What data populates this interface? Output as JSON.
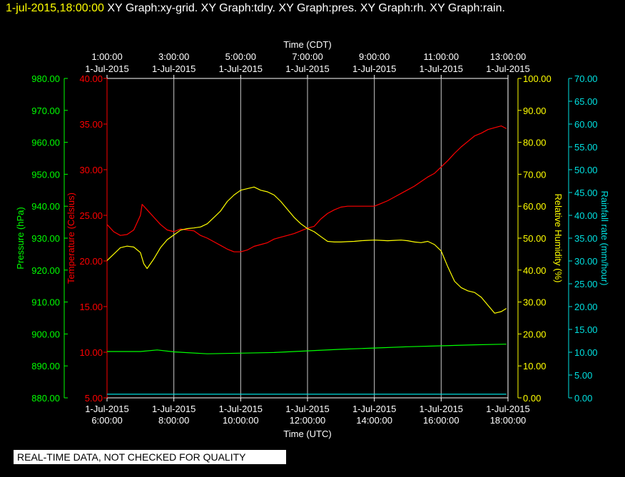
{
  "header": {
    "timestamp": "1-jul-2015,18:00:00",
    "graphs": "XY Graph:xy-grid.  XY Graph:tdry.  XY Graph:pres.  XY Graph:rh.  XY Graph:rain."
  },
  "disclaimer": "REAL-TIME DATA, NOT CHECKED FOR QUALITY",
  "colors": {
    "pressure": "#00ff00",
    "temperature": "#ff0000",
    "humidity": "#ffff00",
    "rain": "#00e0e0",
    "grid": "#ffffff",
    "background": "#000000"
  },
  "chart_data": {
    "type": "line",
    "x_top": {
      "label": "Time (CDT)",
      "ticks": [
        {
          "time": "1:00:00",
          "date": "1-Jul-2015"
        },
        {
          "time": "3:00:00",
          "date": "1-Jul-2015"
        },
        {
          "time": "5:00:00",
          "date": "1-Jul-2015"
        },
        {
          "time": "7:00:00",
          "date": "1-Jul-2015"
        },
        {
          "time": "9:00:00",
          "date": "1-Jul-2015"
        },
        {
          "time": "11:00:00",
          "date": "1-Jul-2015"
        },
        {
          "time": "13:00:00",
          "date": "1-Jul-2015"
        }
      ]
    },
    "x_bottom": {
      "label": "Time (UTC)",
      "ticks": [
        {
          "date": "1-Jul-2015",
          "time": "6:00:00"
        },
        {
          "date": "1-Jul-2015",
          "time": "8:00:00"
        },
        {
          "date": "1-Jul-2015",
          "time": "10:00:00"
        },
        {
          "date": "1-Jul-2015",
          "time": "12:00:00"
        },
        {
          "date": "1-Jul-2015",
          "time": "14:00:00"
        },
        {
          "date": "1-Jul-2015",
          "time": "16:00:00"
        },
        {
          "date": "1-Jul-2015",
          "time": "18:00:00"
        }
      ]
    },
    "x_range_utc_hours": [
      6,
      18
    ],
    "grid": true,
    "axes": {
      "pressure": {
        "label": "Pressure (hPa)",
        "range": [
          880,
          980
        ],
        "ticks": [
          "880.00",
          "890.00",
          "900.00",
          "910.00",
          "920.00",
          "930.00",
          "940.00",
          "950.00",
          "960.00",
          "970.00",
          "980.00"
        ]
      },
      "temperature": {
        "label": "Temperature (Celsius)",
        "range": [
          5,
          40
        ],
        "ticks": [
          "5.00",
          "10.00",
          "15.00",
          "20.00",
          "25.00",
          "30.00",
          "35.00",
          "40.00"
        ]
      },
      "humidity": {
        "label": "Relative Humidity (%)",
        "range": [
          0,
          100
        ],
        "ticks": [
          "0.00",
          "10.00",
          "20.00",
          "30.00",
          "40.00",
          "50.00",
          "60.00",
          "70.00",
          "80.00",
          "90.00",
          "100.00"
        ]
      },
      "rain": {
        "label": "Rainfall rate (mm/hour)",
        "range": [
          0,
          70
        ],
        "ticks": [
          "0.00",
          "5.00",
          "10.00",
          "15.00",
          "20.00",
          "25.00",
          "30.00",
          "35.00",
          "40.00",
          "45.00",
          "50.00",
          "55.00",
          "60.00",
          "65.00",
          "70.00"
        ]
      }
    },
    "series": [
      {
        "name": "Temperature (Celsius)",
        "axis": "temperature",
        "color": "#ff0000",
        "x": [
          6.0,
          6.2,
          6.4,
          6.6,
          6.8,
          7.0,
          7.05,
          7.2,
          7.4,
          7.6,
          7.8,
          8.0,
          8.2,
          8.4,
          8.6,
          8.8,
          9.0,
          9.2,
          9.4,
          9.6,
          9.8,
          10.0,
          10.2,
          10.4,
          10.6,
          10.8,
          11.0,
          11.2,
          11.4,
          11.6,
          11.8,
          12.0,
          12.2,
          12.4,
          12.6,
          12.8,
          13.0,
          13.2,
          13.4,
          13.6,
          13.8,
          14.0,
          14.2,
          14.4,
          14.6,
          14.8,
          15.0,
          15.2,
          15.4,
          15.6,
          15.8,
          16.0,
          16.2,
          16.4,
          16.6,
          16.8,
          17.0,
          17.2,
          17.4,
          17.6,
          17.8,
          17.95
        ],
        "y": [
          24.0,
          23.2,
          22.8,
          22.9,
          23.4,
          25.0,
          26.2,
          25.6,
          24.8,
          24.0,
          23.4,
          23.2,
          23.5,
          23.4,
          23.3,
          22.8,
          22.5,
          22.1,
          21.7,
          21.3,
          21.0,
          21.0,
          21.2,
          21.6,
          21.8,
          22.0,
          22.4,
          22.6,
          22.8,
          23.0,
          23.3,
          23.6,
          23.8,
          24.6,
          25.2,
          25.6,
          25.9,
          26.0,
          26.0,
          26.0,
          26.0,
          26.0,
          26.3,
          26.6,
          27.0,
          27.4,
          27.8,
          28.2,
          28.7,
          29.2,
          29.6,
          30.3,
          31.0,
          31.8,
          32.5,
          33.1,
          33.7,
          34.0,
          34.4,
          34.6,
          34.8,
          34.5
        ]
      },
      {
        "name": "Relative Humidity (%)",
        "axis": "humidity",
        "color": "#ffff00",
        "x": [
          6.0,
          6.2,
          6.4,
          6.6,
          6.8,
          7.0,
          7.1,
          7.2,
          7.4,
          7.6,
          7.8,
          8.0,
          8.2,
          8.4,
          8.6,
          8.8,
          9.0,
          9.2,
          9.4,
          9.6,
          9.8,
          10.0,
          10.2,
          10.4,
          10.6,
          10.8,
          11.0,
          11.2,
          11.4,
          11.6,
          11.8,
          12.0,
          12.2,
          12.4,
          12.6,
          12.8,
          13.0,
          13.2,
          13.4,
          13.6,
          13.8,
          14.0,
          14.2,
          14.4,
          14.6,
          14.8,
          15.0,
          15.2,
          15.4,
          15.6,
          15.8,
          16.0,
          16.2,
          16.4,
          16.6,
          16.8,
          17.0,
          17.2,
          17.4,
          17.6,
          17.8,
          17.95
        ],
        "y": [
          43.0,
          45.0,
          47.0,
          47.5,
          47.2,
          45.5,
          42.0,
          40.5,
          43.5,
          47.0,
          49.5,
          51.0,
          52.5,
          53.0,
          53.2,
          53.5,
          54.5,
          56.5,
          58.5,
          61.5,
          63.5,
          65.0,
          65.5,
          66.0,
          65.0,
          64.5,
          63.5,
          61.5,
          59.0,
          56.5,
          54.5,
          53.0,
          52.0,
          50.5,
          49.0,
          48.8,
          48.8,
          48.9,
          49.0,
          49.2,
          49.3,
          49.4,
          49.3,
          49.2,
          49.3,
          49.4,
          49.2,
          48.8,
          48.6,
          49.0,
          48.0,
          46.0,
          41.0,
          36.5,
          34.5,
          33.5,
          33.0,
          31.5,
          29.0,
          26.5,
          27.0,
          28.0
        ]
      },
      {
        "name": "Pressure (hPa)",
        "axis": "pressure",
        "color": "#00ff00",
        "x": [
          6.0,
          7.0,
          7.5,
          8.0,
          9.0,
          10.0,
          11.0,
          12.0,
          13.0,
          14.0,
          15.0,
          16.0,
          17.0,
          17.95
        ],
        "y": [
          894.5,
          894.5,
          895.0,
          894.4,
          893.8,
          894.0,
          894.2,
          894.7,
          895.2,
          895.6,
          896.0,
          896.3,
          896.6,
          896.8
        ]
      },
      {
        "name": "Rainfall rate (mm/hour)",
        "axis": "rain",
        "color": "#00e0e0",
        "x": [
          6.0,
          17.95
        ],
        "y": [
          0.8,
          0.8
        ]
      }
    ]
  }
}
